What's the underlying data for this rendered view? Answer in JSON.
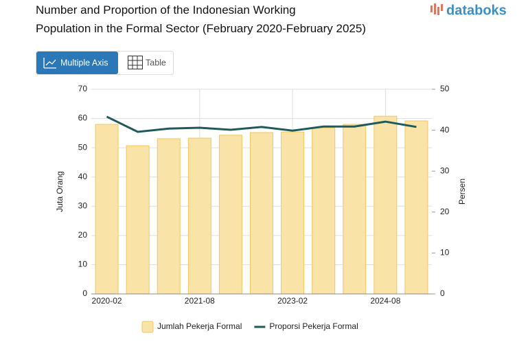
{
  "header": {
    "logo": "databoks"
  },
  "controls": {
    "buttons": [
      "Multiple Axis",
      "Table"
    ]
  },
  "chart_data": {
    "type": "bar-line",
    "title": "Number and Proportion of the Indonesian Working Population in the Formal Sector (February 2020-February 2025)",
    "categories": [
      "2020-02",
      null,
      null,
      "2021-08",
      null,
      null,
      "2023-02",
      null,
      null,
      "2024-08",
      null
    ],
    "series": [
      {
        "name": "Jumlah Pekerja Formal",
        "type": "bar",
        "color": "#f9e3a6",
        "values": [
          58.0,
          50.7,
          53.1,
          53.3,
          54.3,
          55.2,
          55.4,
          56.8,
          58.0,
          60.8,
          59.2
        ]
      },
      {
        "name": "Proporsi Pekerja Formal",
        "type": "line",
        "axis": "y2",
        "color": "#1f5a5b",
        "values": [
          43.3,
          39.6,
          40.4,
          40.6,
          40.1,
          40.8,
          39.9,
          40.9,
          40.9,
          42.1,
          40.8
        ]
      }
    ],
    "ylabel": "Juta Orang",
    "y2label": "Persen",
    "ylim": [
      0,
      70
    ],
    "yticks": [
      0,
      10,
      20,
      30,
      40,
      50,
      60,
      70
    ],
    "y2lim": [
      0,
      50
    ],
    "y2ticks": [
      0,
      10,
      20,
      30,
      40,
      50
    ],
    "grid": true,
    "legend": "bottom"
  }
}
